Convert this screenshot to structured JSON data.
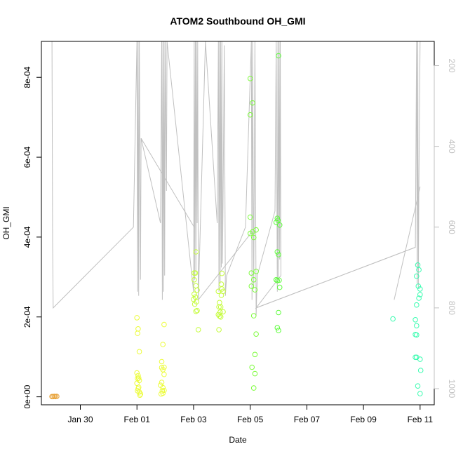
{
  "chart_data": {
    "type": "scatter",
    "title": "ATOM2 Southbound OH_GMI",
    "xlabel": "Date",
    "ylabel": "OH_GMI",
    "xlim": [
      "2017-01-28T15:00",
      "2017-02-11T12:00"
    ],
    "ylim": [
      -2e-05,
      0.00089
    ],
    "x_ticks": [
      {
        "date": "2017-01-30",
        "label": "Jan 30"
      },
      {
        "date": "2017-02-01",
        "label": "Feb 01"
      },
      {
        "date": "2017-02-03",
        "label": "Feb 03"
      },
      {
        "date": "2017-02-05",
        "label": "Feb 05"
      },
      {
        "date": "2017-02-07",
        "label": "Feb 07"
      },
      {
        "date": "2017-02-09",
        "label": "Feb 09"
      },
      {
        "date": "2017-02-11",
        "label": "Feb 11"
      }
    ],
    "y_ticks": [
      {
        "value": 0,
        "label": "0e+00"
      },
      {
        "value": 0.0002,
        "label": "2e-04"
      },
      {
        "value": 0.0004,
        "label": "4e-04"
      },
      {
        "value": 0.0006,
        "label": "6e-04"
      },
      {
        "value": 0.0008,
        "label": "8e-04"
      }
    ],
    "right_axis": {
      "reversed": true,
      "ylim": [
        140,
        1040
      ],
      "ticks": [
        {
          "value": 200,
          "label": "200"
        },
        {
          "value": 400,
          "label": "400"
        },
        {
          "value": 600,
          "label": "600"
        },
        {
          "value": 800,
          "label": "800"
        },
        {
          "value": 1000,
          "label": "1000"
        }
      ]
    },
    "point_groups": [
      {
        "color": "#e8a33a",
        "points": [
          [
            "2017-01-29T00:00",
            5e-07
          ],
          [
            "2017-01-29T01:00",
            5e-07
          ],
          [
            "2017-01-29T02:00",
            1e-06
          ],
          [
            "2017-01-29T03:00",
            5e-07
          ],
          [
            "2017-01-29T04:00",
            1e-06
          ]
        ]
      },
      {
        "color": "#ecfc3a",
        "points": [
          [
            "2017-02-01T00:00",
            0.000198
          ],
          [
            "2017-02-01T01:00",
            0.00017
          ],
          [
            "2017-02-01T00:30",
            0.000159
          ],
          [
            "2017-02-01T02:00",
            0.000113
          ],
          [
            "2017-02-01T00:00",
            6e-05
          ],
          [
            "2017-02-01T01:00",
            5.3e-05
          ],
          [
            "2017-02-01T00:30",
            4.6e-05
          ],
          [
            "2017-02-01T02:00",
            4.1e-05
          ],
          [
            "2017-02-01T00:00",
            3.4e-05
          ],
          [
            "2017-02-01T01:30",
            2.4e-05
          ],
          [
            "2017-02-01T01:00",
            2e-05
          ],
          [
            "2017-02-01T02:00",
            1.2e-05
          ],
          [
            "2017-02-01T03:00",
            7e-06
          ],
          [
            "2017-02-01T02:30",
            4e-06
          ],
          [
            "2017-02-01T00:30",
            1.5e-05
          ],
          [
            "2017-02-01T01:30",
            4.7e-05
          ],
          [
            "2017-02-01T21:00",
            8.8e-05
          ],
          [
            "2017-02-01T22:00",
            0.000131
          ],
          [
            "2017-02-01T23:00",
            0.000181
          ],
          [
            "2017-02-01T21:00",
            7.3e-05
          ],
          [
            "2017-02-01T22:00",
            6.8e-05
          ],
          [
            "2017-02-01T23:00",
            7.4e-05
          ],
          [
            "2017-02-01T23:00",
            5.6e-05
          ],
          [
            "2017-02-01T21:00",
            3.6e-05
          ],
          [
            "2017-02-01T20:00",
            2.9e-05
          ],
          [
            "2017-02-01T22:00",
            2.3e-05
          ],
          [
            "2017-02-01T21:30",
            1.5e-05
          ],
          [
            "2017-02-01T23:00",
            1.6e-05
          ],
          [
            "2017-02-01T22:00",
            9e-06
          ],
          [
            "2017-02-01T20:30",
            7e-06
          ]
        ]
      },
      {
        "color": "#c4fc3a",
        "points": [
          [
            "2017-02-03T02:00",
            0.000363
          ],
          [
            "2017-02-03T00:30",
            0.00031
          ],
          [
            "2017-02-03T01:30",
            0.00031
          ],
          [
            "2017-02-03T00:30",
            0.000293
          ],
          [
            "2017-02-03T02:00",
            0.000278
          ],
          [
            "2017-02-03T03:00",
            0.000267
          ],
          [
            "2017-02-03T00:30",
            0.000257
          ],
          [
            "2017-02-03T01:30",
            0.00025
          ],
          [
            "2017-02-03T00:00",
            0.000244
          ],
          [
            "2017-02-03T02:30",
            0.000238
          ],
          [
            "2017-02-03T01:00",
            0.000232
          ],
          [
            "2017-02-03T03:00",
            0.000216
          ],
          [
            "2017-02-03T02:00",
            0.000214
          ],
          [
            "2017-02-03T04:00",
            0.000168
          ],
          [
            "2017-02-03T21:00",
            0.000264
          ],
          [
            "2017-02-03T22:00",
            0.000236
          ],
          [
            "2017-02-03T23:00",
            0.000225
          ],
          [
            "2017-02-03T21:30",
            0.000225
          ],
          [
            "2017-02-03T22:30",
            0.000212
          ],
          [
            "2017-02-03T21:00",
            0.000206
          ],
          [
            "2017-02-03T22:00",
            0.000202
          ],
          [
            "2017-02-03T23:00",
            0.0002
          ],
          [
            "2017-02-03T21:30",
            0.000168
          ],
          [
            "2017-02-04T00:00",
            0.000309
          ],
          [
            "2017-02-03T23:30",
            0.000282
          ],
          [
            "2017-02-04T01:00",
            0.000264
          ],
          [
            "2017-02-03T23:30",
            0.000254
          ],
          [
            "2017-02-04T01:00",
            0.000213
          ],
          [
            "2017-02-04T00:00",
            0.00027
          ]
        ]
      },
      {
        "color": "#7cfc3a",
        "points": [
          [
            "2017-02-05T00:00",
            0.000797
          ],
          [
            "2017-02-05T02:00",
            0.000736
          ],
          [
            "2017-02-05T00:00",
            0.000706
          ],
          [
            "2017-02-05T00:00",
            0.00045
          ],
          [
            "2017-02-05T05:00",
            0.000418
          ],
          [
            "2017-02-05T02:00",
            0.000413
          ],
          [
            "2017-02-05T00:00",
            0.000409
          ],
          [
            "2017-02-05T03:00",
            0.000399
          ],
          [
            "2017-02-05T05:00",
            0.000314
          ],
          [
            "2017-02-05T01:00",
            0.00031
          ],
          [
            "2017-02-05T03:00",
            0.000293
          ],
          [
            "2017-02-05T01:00",
            0.000277
          ],
          [
            "2017-02-05T04:00",
            0.000268
          ],
          [
            "2017-02-05T03:00",
            0.000203
          ],
          [
            "2017-02-05T05:00",
            0.000157
          ],
          [
            "2017-02-05T04:00",
            0.000106
          ],
          [
            "2017-02-05T01:30",
            7.4e-05
          ],
          [
            "2017-02-05T04:00",
            5.8e-05
          ],
          [
            "2017-02-05T03:00",
            2.2e-05
          ]
        ]
      },
      {
        "color": "#5cfc3a",
        "points": [
          [
            "2017-02-06T00:00",
            0.000854
          ],
          [
            "2017-02-05T23:00",
            0.000447
          ],
          [
            "2017-02-05T23:30",
            0.000442
          ],
          [
            "2017-02-06T01:00",
            0.00043
          ],
          [
            "2017-02-05T22:00",
            0.000437
          ],
          [
            "2017-02-05T23:00",
            0.000363
          ],
          [
            "2017-02-06T00:00",
            0.000356
          ],
          [
            "2017-02-05T22:00",
            0.000293
          ],
          [
            "2017-02-05T23:00",
            0.000291
          ],
          [
            "2017-02-06T00:30",
            0.000292
          ],
          [
            "2017-02-06T01:00",
            0.000274
          ],
          [
            "2017-02-06T00:00",
            0.000211
          ],
          [
            "2017-02-05T23:00",
            0.000173
          ],
          [
            "2017-02-06T00:00",
            0.000166
          ]
        ]
      },
      {
        "color": "#3afcb0",
        "points": [
          [
            "2017-02-10T01:00",
            0.000195
          ],
          [
            "2017-02-10T22:00",
            0.00033
          ],
          [
            "2017-02-10T23:00",
            0.000318
          ],
          [
            "2017-02-10T21:00",
            0.000302
          ],
          [
            "2017-02-10T22:30",
            0.000277
          ],
          [
            "2017-02-11T00:00",
            0.00027
          ],
          [
            "2017-02-11T00:00",
            0.000256
          ],
          [
            "2017-02-10T23:00",
            0.000247
          ],
          [
            "2017-02-10T21:00",
            0.00023
          ],
          [
            "2017-02-10T20:00",
            0.000193
          ],
          [
            "2017-02-10T21:00",
            0.000178
          ],
          [
            "2017-02-10T20:00",
            0.000156
          ],
          [
            "2017-02-10T21:00",
            0.000155
          ],
          [
            "2017-02-10T20:00",
            9.9e-05
          ],
          [
            "2017-02-10T21:00",
            9.9e-05
          ],
          [
            "2017-02-11T00:00",
            9.4e-05
          ],
          [
            "2017-02-11T00:30",
            6.6e-05
          ],
          [
            "2017-02-10T22:00",
            2.7e-05
          ],
          [
            "2017-02-11T00:00",
            8e-06
          ]
        ]
      }
    ],
    "flight_track": {
      "color": "#c0c0c0",
      "axis": "right",
      "points": [
        [
          "2017-01-29T00:00",
          140
        ],
        [
          "2017-01-29T00:30",
          640
        ],
        [
          "2017-01-29T01:00",
          800
        ],
        [
          "2017-01-31T21:00",
          600
        ],
        [
          "2017-02-01T00:00",
          130
        ],
        [
          "2017-02-01T00:30",
          760
        ],
        [
          "2017-02-01T01:00",
          130
        ],
        [
          "2017-02-01T01:30",
          770
        ],
        [
          "2017-02-01T02:00",
          130
        ],
        [
          "2017-02-01T03:00",
          730
        ],
        [
          "2017-02-01T03:30",
          380
        ],
        [
          "2017-02-01T20:00",
          590
        ],
        [
          "2017-02-01T21:00",
          130
        ],
        [
          "2017-02-01T21:30",
          780
        ],
        [
          "2017-02-01T22:00",
          130
        ],
        [
          "2017-02-01T22:30",
          760
        ],
        [
          "2017-02-01T23:00",
          130
        ],
        [
          "2017-02-01T23:30",
          720
        ],
        [
          "2017-02-02T00:00",
          130
        ],
        [
          "2017-02-02T01:00",
          510
        ],
        [
          "2017-02-02T01:30",
          130
        ],
        [
          "2017-02-03T00:00",
          760
        ],
        [
          "2017-02-03T00:30",
          130
        ],
        [
          "2017-02-03T01:00",
          730
        ],
        [
          "2017-02-03T01:30",
          130
        ],
        [
          "2017-02-03T02:00",
          710
        ],
        [
          "2017-02-03T02:30",
          130
        ],
        [
          "2017-02-03T03:00",
          590
        ],
        [
          "2017-02-03T03:30",
          130
        ],
        [
          "2017-02-03T04:00",
          780
        ],
        [
          "2017-02-03T10:00",
          130
        ],
        [
          "2017-02-03T20:00",
          590
        ],
        [
          "2017-02-03T21:00",
          130
        ],
        [
          "2017-02-03T21:30",
          760
        ],
        [
          "2017-02-03T22:00",
          130
        ],
        [
          "2017-02-03T22:30",
          740
        ],
        [
          "2017-02-03T23:00",
          130
        ],
        [
          "2017-02-03T23:30",
          700
        ],
        [
          "2017-02-04T00:00",
          130
        ],
        [
          "2017-02-04T00:30",
          690
        ],
        [
          "2017-02-04T01:00",
          530
        ],
        [
          "2017-02-04T02:00",
          150
        ],
        [
          "2017-02-04T03:00",
          770
        ],
        [
          "2017-02-04T04:00",
          720
        ],
        [
          "2017-02-04T20:00",
          600
        ],
        [
          "2017-02-05T01:00",
          130
        ],
        [
          "2017-02-05T01:30",
          780
        ],
        [
          "2017-02-05T02:00",
          130
        ],
        [
          "2017-02-05T03:00",
          750
        ],
        [
          "2017-02-05T04:00",
          130
        ],
        [
          "2017-02-05T05:00",
          820
        ],
        [
          "2017-02-05T06:00",
          720
        ],
        [
          "2017-02-05T21:00",
          560
        ],
        [
          "2017-02-05T22:00",
          130
        ],
        [
          "2017-02-05T23:00",
          760
        ],
        [
          "2017-02-05T23:30",
          130
        ],
        [
          "2017-02-06T00:00",
          730
        ],
        [
          "2017-02-06T00:30",
          130
        ],
        [
          "2017-02-06T01:00",
          680
        ],
        [
          "2017-02-06T01:30",
          130
        ],
        [
          "2017-02-06T02:00",
          720
        ],
        [
          "2017-02-05T05:00",
          800
        ],
        [
          "2017-02-10T20:00",
          650
        ],
        [
          "2017-02-10T21:00",
          130
        ],
        [
          "2017-02-10T21:30",
          740
        ],
        [
          "2017-02-10T22:00",
          130
        ],
        [
          "2017-02-10T22:30",
          750
        ],
        [
          "2017-02-10T23:00",
          500
        ],
        [
          "2017-02-11T00:00",
          140
        ]
      ],
      "extra_segments": [
        [
          [
            "2017-02-01T03:30",
            380
          ],
          [
            "2017-02-03T00:30",
            600
          ]
        ],
        [
          [
            "2017-02-03T04:00",
            780
          ],
          [
            "2017-02-05T02:00",
            610
          ]
        ],
        [
          [
            "2017-02-05T05:00",
            800
          ],
          [
            "2017-02-10T20:00",
            650
          ]
        ],
        [
          [
            "2017-02-10T02:00",
            780
          ],
          [
            "2017-02-11T00:00",
            500
          ]
        ]
      ]
    }
  }
}
